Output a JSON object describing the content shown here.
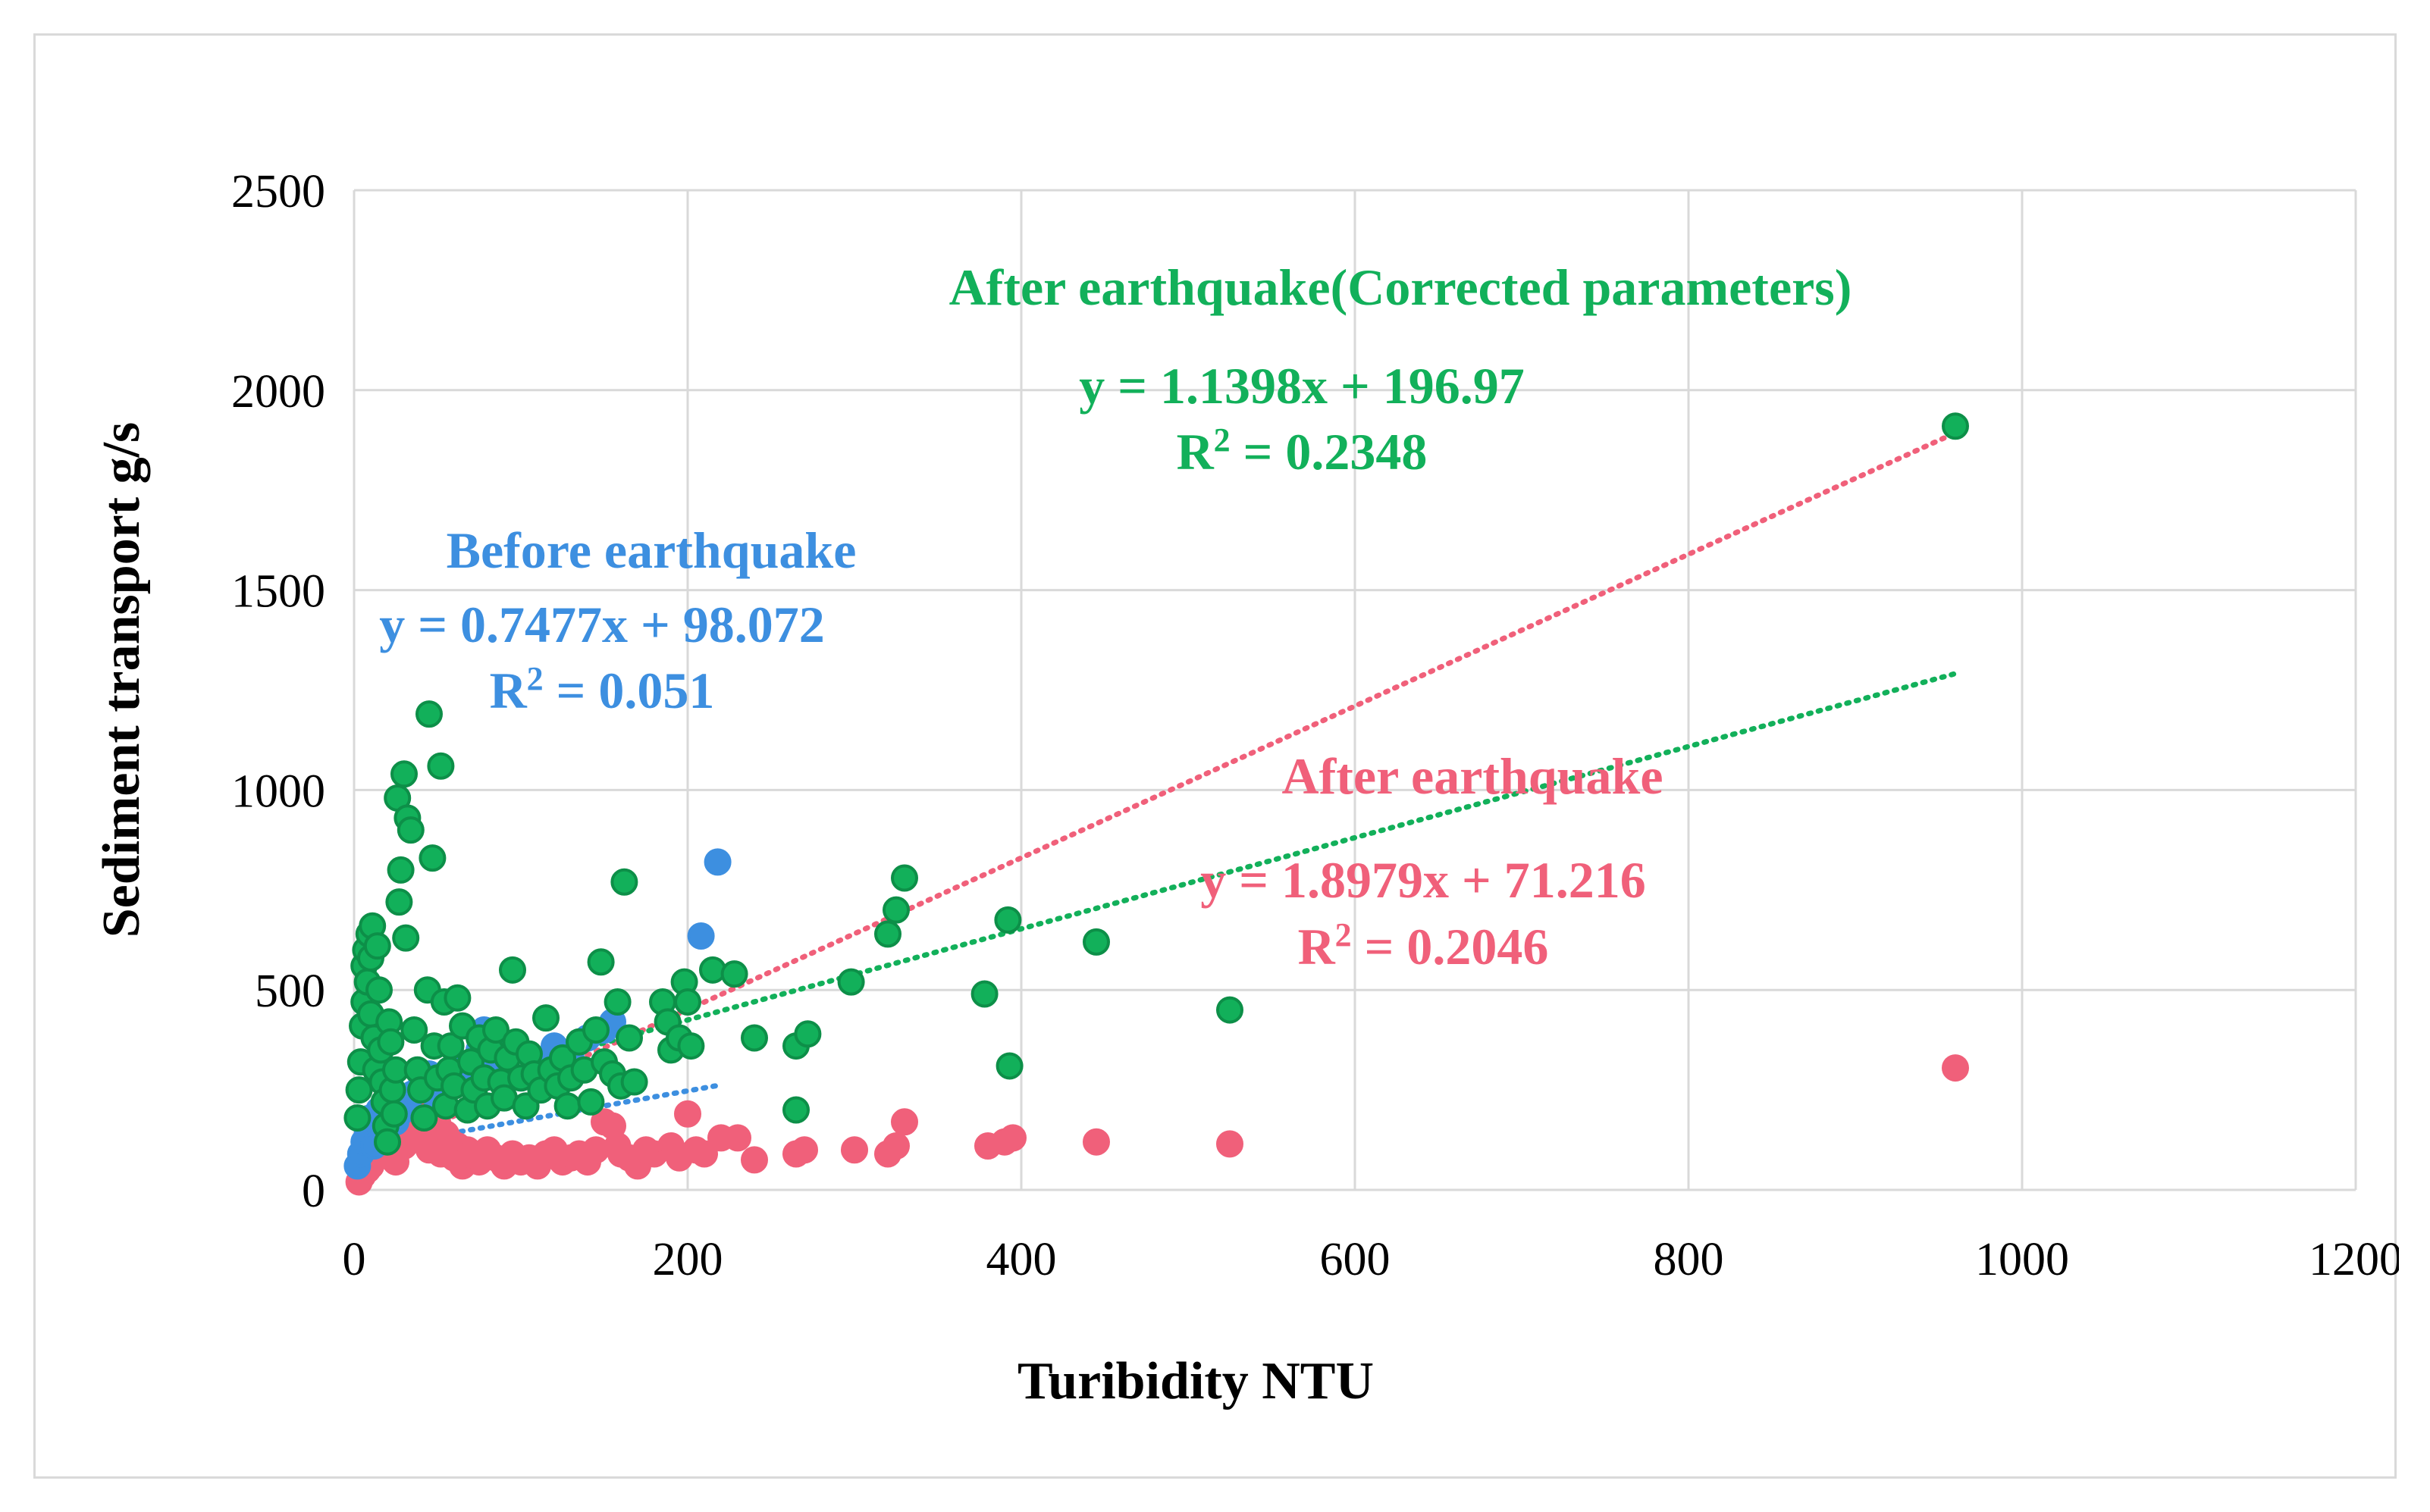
{
  "chart_data": {
    "type": "scatter",
    "title": "",
    "xlabel": "Turibidity NTU",
    "ylabel": "Sediment transport g/s",
    "xlim": [
      0,
      1200
    ],
    "ylim": [
      0,
      2500
    ],
    "xticks": [
      "0",
      "200",
      "400",
      "600",
      "800",
      "1000",
      "1200"
    ],
    "yticks": [
      "0",
      "500",
      "1000",
      "1500",
      "2000",
      "2500"
    ],
    "grid": true,
    "legend": "none",
    "series": [
      {
        "name": "After earthquake",
        "color": "#f0607a",
        "label": "After earthquake",
        "equation": "y = 1.8979x + 71.216",
        "r2_label": "R",
        "r2_value": " = 0.2046",
        "trendline": {
          "slope": 1.8979,
          "intercept": 71.216,
          "x_range": [
            0,
            960
          ]
        },
        "points": [
          [
            3,
            20
          ],
          [
            5,
            35
          ],
          [
            8,
            50
          ],
          [
            10,
            60
          ],
          [
            12,
            80
          ],
          [
            15,
            100
          ],
          [
            18,
            120
          ],
          [
            20,
            90
          ],
          [
            22,
            140
          ],
          [
            25,
            70
          ],
          [
            28,
            160
          ],
          [
            30,
            110
          ],
          [
            32,
            180
          ],
          [
            35,
            200
          ],
          [
            38,
            150
          ],
          [
            40,
            220
          ],
          [
            42,
            130
          ],
          [
            45,
            100
          ],
          [
            48,
            240
          ],
          [
            50,
            170
          ],
          [
            52,
            90
          ],
          [
            55,
            140
          ],
          [
            58,
            120
          ],
          [
            60,
            80
          ],
          [
            62,
            110
          ],
          [
            65,
            60
          ],
          [
            68,
            100
          ],
          [
            70,
            90
          ],
          [
            75,
            70
          ],
          [
            80,
            100
          ],
          [
            85,
            80
          ],
          [
            90,
            60
          ],
          [
            95,
            90
          ],
          [
            100,
            70
          ],
          [
            105,
            80
          ],
          [
            110,
            60
          ],
          [
            115,
            90
          ],
          [
            120,
            100
          ],
          [
            125,
            70
          ],
          [
            130,
            80
          ],
          [
            135,
            90
          ],
          [
            140,
            70
          ],
          [
            145,
            100
          ],
          [
            150,
            170
          ],
          [
            155,
            160
          ],
          [
            158,
            110
          ],
          [
            160,
            90
          ],
          [
            165,
            80
          ],
          [
            170,
            60
          ],
          [
            175,
            100
          ],
          [
            180,
            90
          ],
          [
            190,
            110
          ],
          [
            195,
            80
          ],
          [
            200,
            190
          ],
          [
            205,
            100
          ],
          [
            210,
            90
          ],
          [
            220,
            130
          ],
          [
            230,
            130
          ],
          [
            240,
            75
          ],
          [
            265,
            90
          ],
          [
            270,
            100
          ],
          [
            300,
            100
          ],
          [
            320,
            90
          ],
          [
            325,
            110
          ],
          [
            330,
            170
          ],
          [
            380,
            110
          ],
          [
            390,
            120
          ],
          [
            395,
            130
          ],
          [
            445,
            120
          ],
          [
            525,
            115
          ],
          [
            960,
            305
          ]
        ]
      },
      {
        "name": "Before earthquake",
        "color": "#3d8fe0",
        "label": "Before earthquake",
        "equation": "y = 0.7477x + 98.072",
        "r2_label": "R",
        "r2_value": " = 0.051",
        "trendline": {
          "slope": 0.7477,
          "intercept": 98.072,
          "x_range": [
            0,
            220
          ]
        },
        "points": [
          [
            2,
            60
          ],
          [
            4,
            90
          ],
          [
            6,
            120
          ],
          [
            8,
            150
          ],
          [
            10,
            180
          ],
          [
            12,
            110
          ],
          [
            15,
            200
          ],
          [
            18,
            140
          ],
          [
            20,
            230
          ],
          [
            25,
            170
          ],
          [
            30,
            200
          ],
          [
            35,
            240
          ],
          [
            40,
            260
          ],
          [
            45,
            290
          ],
          [
            50,
            220
          ],
          [
            55,
            250
          ],
          [
            60,
            300
          ],
          [
            65,
            280
          ],
          [
            70,
            320
          ],
          [
            75,
            350
          ],
          [
            78,
            400
          ],
          [
            85,
            300
          ],
          [
            90,
            340
          ],
          [
            100,
            280
          ],
          [
            110,
            320
          ],
          [
            120,
            360
          ],
          [
            130,
            330
          ],
          [
            140,
            380
          ],
          [
            150,
            400
          ],
          [
            155,
            420
          ],
          [
            208,
            635
          ],
          [
            218,
            820
          ]
        ]
      },
      {
        "name": "After earthquake(Corrected parameters)",
        "color": "#12b05a",
        "label": "After earthquake(Corrected parameters)",
        "equation": "y = 1.1398x + 196.97",
        "r2_label": "R",
        "r2_value": " = 0.2348",
        "trendline": {
          "slope": 1.1398,
          "intercept": 196.97,
          "x_range": [
            0,
            960
          ]
        },
        "points": [
          [
            2,
            180
          ],
          [
            3,
            250
          ],
          [
            4,
            320
          ],
          [
            5,
            410
          ],
          [
            6,
            470
          ],
          [
            6,
            560
          ],
          [
            7,
            600
          ],
          [
            8,
            520
          ],
          [
            9,
            640
          ],
          [
            10,
            580
          ],
          [
            10,
            440
          ],
          [
            11,
            660
          ],
          [
            12,
            380
          ],
          [
            13,
            300
          ],
          [
            14,
            610
          ],
          [
            15,
            500
          ],
          [
            16,
            350
          ],
          [
            17,
            270
          ],
          [
            18,
            220
          ],
          [
            19,
            160
          ],
          [
            20,
            120
          ],
          [
            21,
            420
          ],
          [
            22,
            370
          ],
          [
            23,
            250
          ],
          [
            24,
            190
          ],
          [
            25,
            300
          ],
          [
            26,
            980
          ],
          [
            27,
            720
          ],
          [
            28,
            800
          ],
          [
            30,
            1040
          ],
          [
            31,
            630
          ],
          [
            32,
            930
          ],
          [
            34,
            900
          ],
          [
            36,
            400
          ],
          [
            38,
            300
          ],
          [
            40,
            250
          ],
          [
            42,
            180
          ],
          [
            44,
            500
          ],
          [
            45,
            1190
          ],
          [
            47,
            830
          ],
          [
            48,
            360
          ],
          [
            50,
            280
          ],
          [
            52,
            1060
          ],
          [
            54,
            470
          ],
          [
            55,
            210
          ],
          [
            57,
            300
          ],
          [
            58,
            360
          ],
          [
            60,
            260
          ],
          [
            62,
            480
          ],
          [
            65,
            410
          ],
          [
            68,
            200
          ],
          [
            70,
            320
          ],
          [
            72,
            250
          ],
          [
            75,
            380
          ],
          [
            78,
            280
          ],
          [
            80,
            210
          ],
          [
            82,
            350
          ],
          [
            85,
            400
          ],
          [
            88,
            270
          ],
          [
            90,
            230
          ],
          [
            92,
            330
          ],
          [
            95,
            550
          ],
          [
            97,
            370
          ],
          [
            100,
            280
          ],
          [
            103,
            210
          ],
          [
            105,
            340
          ],
          [
            108,
            290
          ],
          [
            112,
            250
          ],
          [
            115,
            430
          ],
          [
            118,
            300
          ],
          [
            122,
            260
          ],
          [
            125,
            330
          ],
          [
            128,
            210
          ],
          [
            130,
            280
          ],
          [
            135,
            370
          ],
          [
            138,
            300
          ],
          [
            142,
            220
          ],
          [
            145,
            400
          ],
          [
            148,
            570
          ],
          [
            150,
            320
          ],
          [
            155,
            290
          ],
          [
            158,
            470
          ],
          [
            160,
            260
          ],
          [
            162,
            770
          ],
          [
            165,
            380
          ],
          [
            168,
            270
          ],
          [
            185,
            470
          ],
          [
            188,
            420
          ],
          [
            190,
            350
          ],
          [
            195,
            380
          ],
          [
            198,
            520
          ],
          [
            200,
            470
          ],
          [
            202,
            360
          ],
          [
            215,
            550
          ],
          [
            228,
            540
          ],
          [
            240,
            380
          ],
          [
            265,
            200
          ],
          [
            265,
            360
          ],
          [
            272,
            390
          ],
          [
            298,
            520
          ],
          [
            320,
            640
          ],
          [
            325,
            700
          ],
          [
            330,
            780
          ],
          [
            378,
            490
          ],
          [
            392,
            675
          ],
          [
            393,
            310
          ],
          [
            445,
            620
          ],
          [
            525,
            450
          ],
          [
            960,
            1910
          ]
        ]
      }
    ]
  }
}
